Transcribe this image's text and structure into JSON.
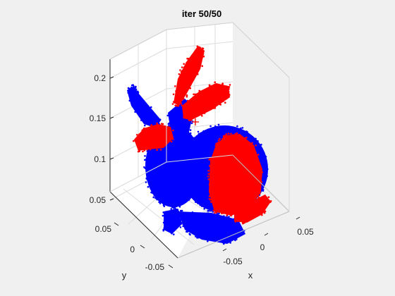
{
  "chart_data": {
    "type": "scatter",
    "title": "iter 50/50",
    "xlabel": "x",
    "ylabel": "y",
    "zlabel": "",
    "xticks": [
      "-0.05",
      "0",
      "0.05"
    ],
    "yticks": [
      "0.05",
      "0",
      "-0.05"
    ],
    "zticks": [
      "0.05",
      "0.1",
      "0.15",
      "0.2"
    ],
    "grid": true,
    "view": "3d-isometric",
    "series": [
      {
        "color": "#0000ff",
        "marker": "point-cloud"
      },
      {
        "color": "#ff0000",
        "marker": "point-cloud"
      }
    ],
    "annotations": [
      {
        "marker": "+",
        "color": "#ff0000"
      }
    ]
  },
  "colors": {
    "background": "#f0f0f0",
    "plot_box": "#ffffff",
    "grid": "#dcdcdc",
    "axis": "#262626",
    "blue_cloud": "#0000ff",
    "red_cloud": "#ff0000"
  }
}
